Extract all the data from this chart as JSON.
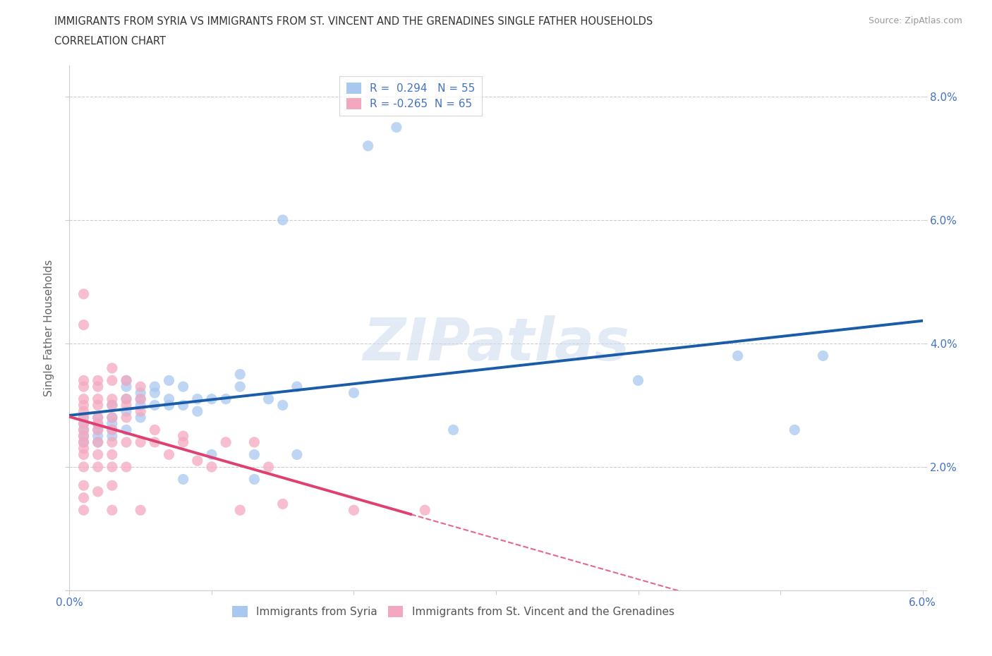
{
  "title_line1": "IMMIGRANTS FROM SYRIA VS IMMIGRANTS FROM ST. VINCENT AND THE GRENADINES SINGLE FATHER HOUSEHOLDS",
  "title_line2": "CORRELATION CHART",
  "source": "Source: ZipAtlas.com",
  "ylabel": "Single Father Households",
  "xlim": [
    0.0,
    0.06
  ],
  "ylim": [
    0.0,
    0.085
  ],
  "xticks": [
    0.0,
    0.01,
    0.02,
    0.03,
    0.04,
    0.05,
    0.06
  ],
  "xticklabels": [
    "0.0%",
    "",
    "",
    "",
    "",
    "",
    "6.0%"
  ],
  "yticks": [
    0.0,
    0.02,
    0.04,
    0.06,
    0.08
  ],
  "yticklabels_right": [
    "",
    "2.0%",
    "4.0%",
    "6.0%",
    "8.0%"
  ],
  "r_syria": 0.294,
  "n_syria": 55,
  "r_stvincent": -0.265,
  "n_stvincent": 65,
  "color_syria": "#A8C8F0",
  "color_stvincent": "#F4A8C0",
  "trendline_syria_color": "#1A5CA8",
  "trendline_stvincent_color": "#E04070",
  "watermark": "ZIPatlas",
  "syria_scatter": [
    [
      0.001,
      0.026
    ],
    [
      0.001,
      0.025
    ],
    [
      0.001,
      0.027
    ],
    [
      0.001,
      0.028
    ],
    [
      0.001,
      0.024
    ],
    [
      0.002,
      0.026
    ],
    [
      0.002,
      0.025
    ],
    [
      0.002,
      0.027
    ],
    [
      0.002,
      0.028
    ],
    [
      0.002,
      0.024
    ],
    [
      0.003,
      0.028
    ],
    [
      0.003,
      0.027
    ],
    [
      0.003,
      0.03
    ],
    [
      0.003,
      0.026
    ],
    [
      0.003,
      0.025
    ],
    [
      0.004,
      0.031
    ],
    [
      0.004,
      0.029
    ],
    [
      0.004,
      0.033
    ],
    [
      0.004,
      0.034
    ],
    [
      0.004,
      0.026
    ],
    [
      0.005,
      0.032
    ],
    [
      0.005,
      0.03
    ],
    [
      0.005,
      0.031
    ],
    [
      0.005,
      0.028
    ],
    [
      0.006,
      0.033
    ],
    [
      0.006,
      0.032
    ],
    [
      0.006,
      0.03
    ],
    [
      0.007,
      0.034
    ],
    [
      0.007,
      0.031
    ],
    [
      0.007,
      0.03
    ],
    [
      0.008,
      0.033
    ],
    [
      0.008,
      0.018
    ],
    [
      0.008,
      0.03
    ],
    [
      0.009,
      0.031
    ],
    [
      0.009,
      0.029
    ],
    [
      0.01,
      0.031
    ],
    [
      0.01,
      0.022
    ],
    [
      0.011,
      0.031
    ],
    [
      0.012,
      0.035
    ],
    [
      0.012,
      0.033
    ],
    [
      0.013,
      0.018
    ],
    [
      0.013,
      0.022
    ],
    [
      0.014,
      0.031
    ],
    [
      0.015,
      0.06
    ],
    [
      0.015,
      0.03
    ],
    [
      0.016,
      0.033
    ],
    [
      0.016,
      0.022
    ],
    [
      0.02,
      0.032
    ],
    [
      0.021,
      0.072
    ],
    [
      0.023,
      0.075
    ],
    [
      0.027,
      0.026
    ],
    [
      0.04,
      0.034
    ],
    [
      0.047,
      0.038
    ],
    [
      0.051,
      0.026
    ],
    [
      0.053,
      0.038
    ]
  ],
  "stvincent_scatter": [
    [
      0.001,
      0.048
    ],
    [
      0.001,
      0.043
    ],
    [
      0.001,
      0.034
    ],
    [
      0.001,
      0.033
    ],
    [
      0.001,
      0.031
    ],
    [
      0.001,
      0.03
    ],
    [
      0.001,
      0.029
    ],
    [
      0.001,
      0.028
    ],
    [
      0.001,
      0.027
    ],
    [
      0.001,
      0.026
    ],
    [
      0.001,
      0.025
    ],
    [
      0.001,
      0.024
    ],
    [
      0.001,
      0.023
    ],
    [
      0.001,
      0.022
    ],
    [
      0.001,
      0.02
    ],
    [
      0.001,
      0.017
    ],
    [
      0.001,
      0.015
    ],
    [
      0.001,
      0.013
    ],
    [
      0.002,
      0.034
    ],
    [
      0.002,
      0.033
    ],
    [
      0.002,
      0.031
    ],
    [
      0.002,
      0.03
    ],
    [
      0.002,
      0.028
    ],
    [
      0.002,
      0.027
    ],
    [
      0.002,
      0.026
    ],
    [
      0.002,
      0.024
    ],
    [
      0.002,
      0.022
    ],
    [
      0.002,
      0.02
    ],
    [
      0.002,
      0.016
    ],
    [
      0.003,
      0.036
    ],
    [
      0.003,
      0.034
    ],
    [
      0.003,
      0.031
    ],
    [
      0.003,
      0.03
    ],
    [
      0.003,
      0.028
    ],
    [
      0.003,
      0.026
    ],
    [
      0.003,
      0.024
    ],
    [
      0.003,
      0.022
    ],
    [
      0.003,
      0.02
    ],
    [
      0.003,
      0.017
    ],
    [
      0.003,
      0.013
    ],
    [
      0.004,
      0.034
    ],
    [
      0.004,
      0.031
    ],
    [
      0.004,
      0.03
    ],
    [
      0.004,
      0.028
    ],
    [
      0.004,
      0.024
    ],
    [
      0.004,
      0.02
    ],
    [
      0.005,
      0.033
    ],
    [
      0.005,
      0.031
    ],
    [
      0.005,
      0.029
    ],
    [
      0.005,
      0.024
    ],
    [
      0.005,
      0.013
    ],
    [
      0.006,
      0.026
    ],
    [
      0.006,
      0.024
    ],
    [
      0.007,
      0.022
    ],
    [
      0.008,
      0.025
    ],
    [
      0.008,
      0.024
    ],
    [
      0.009,
      0.021
    ],
    [
      0.01,
      0.02
    ],
    [
      0.011,
      0.024
    ],
    [
      0.012,
      0.013
    ],
    [
      0.013,
      0.024
    ],
    [
      0.014,
      0.02
    ],
    [
      0.015,
      0.014
    ],
    [
      0.02,
      0.013
    ],
    [
      0.025,
      0.013
    ]
  ],
  "sv_trendline_solid_end": 0.024,
  "sv_trendline_dash_end": 0.06
}
